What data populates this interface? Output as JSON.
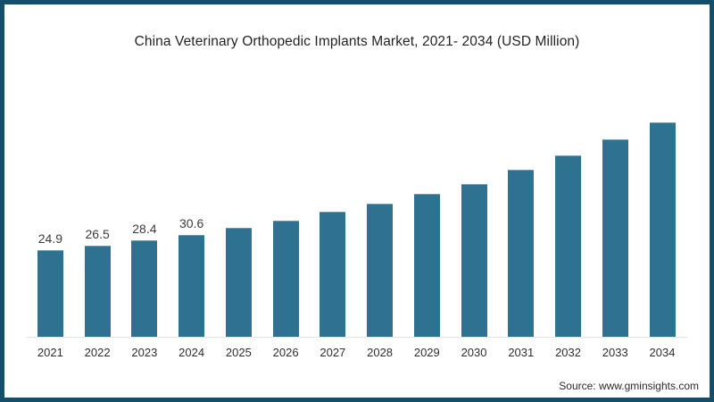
{
  "frame": {
    "border_color": "#154e68",
    "background": "#ffffff"
  },
  "header": {
    "title": "China Veterinary Orthopedic Implants Market, 2021- 2034 (USD Million)"
  },
  "footer": {
    "source": "Source: www.gminsights.com"
  },
  "chart_data": {
    "type": "bar",
    "title": "China Veterinary Orthopedic Implants Market, 2021- 2034 (USD Million)",
    "categories": [
      "2021",
      "2022",
      "2023",
      "2024",
      "2025",
      "2026",
      "2027",
      "2028",
      "2029",
      "2030",
      "2031",
      "2032",
      "2033",
      "2034"
    ],
    "values": [
      24.9,
      26.5,
      28.4,
      30.6,
      33.1,
      35.9,
      39.0,
      42.1,
      45.7,
      49.4,
      54.6,
      59.9,
      65.8,
      72.0
    ],
    "visible_data_labels": [
      "24.9",
      "26.5",
      "28.4",
      "30.6",
      "",
      "",
      "",
      "",
      "",
      "",
      "",
      "",
      "",
      ""
    ],
    "xlabel": "",
    "ylabel": "",
    "unit": "USD Million",
    "legend_position": "none",
    "grid": false,
    "bar_color": "#2e7190",
    "axis_line_color": "#e4e4e4",
    "source": "www.gminsights.com"
  }
}
